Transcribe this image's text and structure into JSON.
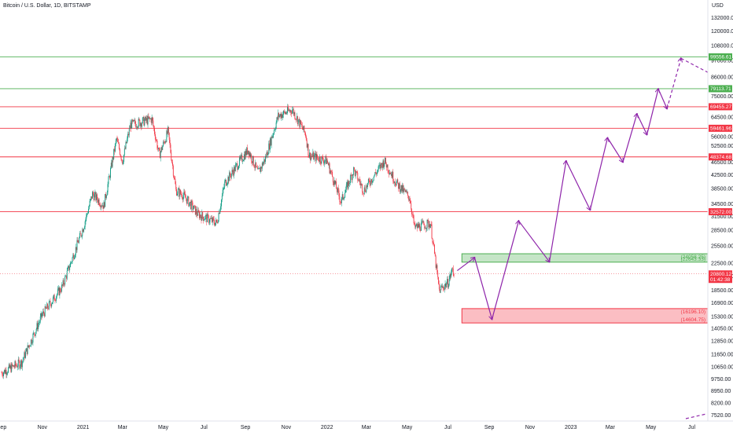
{
  "chart_data": {
    "type": "candlestick",
    "title": "Bitcoin / U.S. Dollar, 1D, BITSTAMP",
    "currency": "USD",
    "y_scale": "log",
    "ylim": [
      7200,
      150000
    ],
    "y_ticks": [
      132000,
      120000,
      108000,
      97000,
      86000,
      75000,
      64500,
      56000,
      52500,
      46500,
      42500,
      38500,
      34500,
      31500,
      28500,
      25500,
      22500,
      20500,
      18500,
      16900,
      15300,
      14050,
      12850,
      11650,
      10650,
      9750,
      8950,
      8200,
      7520
    ],
    "y_tick_labels": [
      "132000.00",
      "120000.00",
      "108000.00",
      "97000.00",
      "86000.00",
      "75000.00",
      "64500.00",
      "56000.00",
      "52500.00",
      "46500.00",
      "42500.00",
      "38500.00",
      "34500.00",
      "31500.00",
      "28500.00",
      "25500.00",
      "22500.00",
      "20500.00",
      "18500.00",
      "16900.00",
      "15300.00",
      "14050.00",
      "12850.00",
      "11650.00",
      "10650.00",
      "9750.00",
      "8950.00",
      "8200.00",
      "7520.00"
    ],
    "x_ticks": [
      "2020-09-01",
      "2020-11-01",
      "2021-01-01",
      "2021-03-01",
      "2021-05-01",
      "2021-07-01",
      "2021-09-01",
      "2021-11-01",
      "2022-01-01",
      "2022-03-01",
      "2022-05-01",
      "2022-07-01",
      "2022-09-01",
      "2022-11-01",
      "2023-01-01",
      "2023-03-01",
      "2023-05-01",
      "2023-07-01"
    ],
    "x_tick_labels": [
      "Sep",
      "Nov",
      "2021",
      "Mar",
      "May",
      "Jul",
      "Sep",
      "Nov",
      "2022",
      "Mar",
      "May",
      "Jul",
      "Sep",
      "Nov",
      "2023",
      "Mar",
      "May",
      "Jul"
    ],
    "price_path": [
      [
        "2020-09-01",
        10200
      ],
      [
        "2020-10-01",
        11000
      ],
      [
        "2020-11-01",
        15500
      ],
      [
        "2020-12-01",
        19000
      ],
      [
        "2021-01-01",
        29000
      ],
      [
        "2021-01-15",
        37000
      ],
      [
        "2021-02-01",
        34000
      ],
      [
        "2021-02-20",
        55000
      ],
      [
        "2021-03-01",
        47000
      ],
      [
        "2021-03-13",
        61000
      ],
      [
        "2021-04-14",
        63500
      ],
      [
        "2021-04-25",
        49000
      ],
      [
        "2021-05-08",
        58000
      ],
      [
        "2021-05-20",
        38000
      ],
      [
        "2021-06-01",
        36500
      ],
      [
        "2021-06-22",
        32000
      ],
      [
        "2021-07-20",
        30000
      ],
      [
        "2021-08-01",
        40000
      ],
      [
        "2021-09-05",
        51000
      ],
      [
        "2021-09-20",
        43000
      ],
      [
        "2021-10-01",
        48000
      ],
      [
        "2021-10-20",
        65000
      ],
      [
        "2021-11-10",
        68000
      ],
      [
        "2021-11-30",
        57000
      ],
      [
        "2021-12-05",
        49000
      ],
      [
        "2022-01-01",
        47000
      ],
      [
        "2022-01-22",
        35000
      ],
      [
        "2022-02-10",
        44000
      ],
      [
        "2022-02-25",
        38000
      ],
      [
        "2022-03-28",
        47000
      ],
      [
        "2022-04-15",
        40000
      ],
      [
        "2022-05-05",
        36000
      ],
      [
        "2022-05-12",
        29000
      ],
      [
        "2022-06-05",
        30000
      ],
      [
        "2022-06-18",
        18500
      ],
      [
        "2022-07-01",
        19500
      ],
      [
        "2022-07-08",
        21500
      ],
      [
        "2022-07-10",
        20800
      ]
    ],
    "current_price": {
      "value": 20800.12,
      "label": "20800.12",
      "countdown": "01:42:38"
    },
    "horizontal_levels": [
      {
        "value": 99556.61,
        "label": "99556.61",
        "color": "#4caf50"
      },
      {
        "value": 79113.71,
        "label": "79113.71",
        "color": "#4caf50"
      },
      {
        "value": 69455.27,
        "label": "69455.27",
        "color": "#f23645"
      },
      {
        "value": 59461.96,
        "label": "59461.96",
        "color": "#f23645"
      },
      {
        "value": 48374.68,
        "label": "48374.68",
        "color": "#f23645"
      },
      {
        "value": 32572.0,
        "label": "32572.00",
        "color": "#f23645"
      }
    ],
    "zones": [
      {
        "top": 24058.25,
        "bottom": 22643.33,
        "top_label": "(24058.25)",
        "bottom_label": "(22643.33)",
        "color": "#4caf50",
        "x_start": "2022-07-22"
      },
      {
        "top": 16196.1,
        "bottom": 14604.75,
        "top_label": "(16196.10)",
        "bottom_label": "(14604.75)",
        "color": "#f23645",
        "x_start": "2022-07-22"
      }
    ],
    "projection_path": [
      [
        "2022-07-15",
        21300
      ],
      [
        "2022-08-10",
        23400
      ],
      [
        "2022-09-05",
        15000
      ],
      [
        "2022-10-15",
        30500
      ],
      [
        "2022-11-30",
        22700
      ],
      [
        "2022-12-25",
        47000
      ],
      [
        "2023-01-30",
        33000
      ],
      [
        "2023-02-25",
        55500
      ],
      [
        "2023-03-20",
        46600
      ],
      [
        "2023-04-10",
        66000
      ],
      [
        "2023-04-25",
        56800
      ],
      [
        "2023-05-12",
        79000
      ],
      [
        "2023-05-25",
        68500
      ]
    ],
    "projection_dashed": [
      [
        "2023-05-25",
        68500
      ],
      [
        "2023-06-15",
        98500
      ],
      [
        "2023-08-10",
        89000
      ]
    ],
    "colors": {
      "up": "#089981",
      "down": "#f23645",
      "arrow": "#8e24aa",
      "grid": "#ffffff"
    }
  }
}
